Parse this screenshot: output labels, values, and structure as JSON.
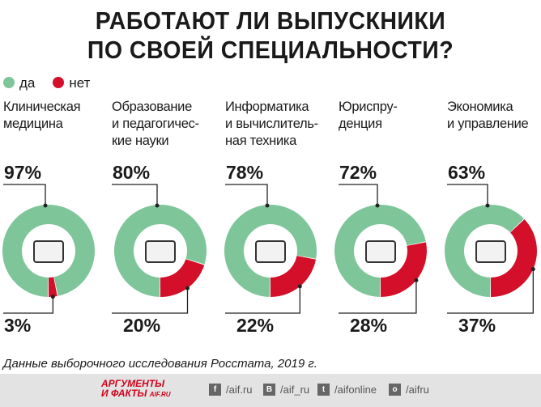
{
  "title_lines": [
    "РАБОТАЮТ ЛИ ВЫПУСКНИКИ",
    "ПО СВОЕЙ СПЕЦИАЛЬНОСТИ?"
  ],
  "chart_data": {
    "type": "donut",
    "legend": [
      {
        "label": "да",
        "color": "#7fc59a"
      },
      {
        "label": "нет",
        "color": "#d40f2a"
      }
    ],
    "categories": [
      {
        "label": "Клиническая медицина",
        "lines": [
          "Клиническая",
          "медицина"
        ],
        "icon": "first-aid-kit-icon",
        "yes": 97,
        "no": 3,
        "yes_label": "97%",
        "no_label": "3%"
      },
      {
        "label": "Образование и педагогические науки",
        "lines": [
          "Образование",
          "и педагогичес-",
          "кие науки"
        ],
        "icon": "books-icon",
        "yes": 80,
        "no": 20,
        "yes_label": "80%",
        "no_label": "20%"
      },
      {
        "label": "Информатика и вычислительная техника",
        "lines": [
          "Информатика",
          "и вычислитель-",
          "ная техника"
        ],
        "icon": "computer-code-icon",
        "yes": 78,
        "no": 22,
        "yes_label": "78%",
        "no_label": "22%"
      },
      {
        "label": "Юриспруденция",
        "lines": [
          "Юриспру-",
          "денция"
        ],
        "icon": "gavel-icon",
        "yes": 72,
        "no": 28,
        "yes_label": "72%",
        "no_label": "28%"
      },
      {
        "label": "Экономика и управление",
        "lines": [
          "Экономика",
          "и управление"
        ],
        "icon": "economics-chart-icon",
        "yes": 63,
        "no": 37,
        "yes_label": "63%",
        "no_label": "37%"
      }
    ]
  },
  "source": "Данные выборочного исследования Росстата, 2019 г.",
  "footer": {
    "logo_top": "АРГУМЕНТЫ",
    "logo_bottom": "И ФАКТЫ",
    "logo_site": "AIF.RU",
    "social": [
      {
        "icon": "facebook-icon",
        "glyph": "f",
        "label": "/aif.ru"
      },
      {
        "icon": "vk-icon",
        "glyph": "В",
        "label": "/aif_ru"
      },
      {
        "icon": "twitter-icon",
        "glyph": "t",
        "label": "/aifonline"
      },
      {
        "icon": "odnoklassniki-icon",
        "glyph": "о",
        "label": "/aifru"
      }
    ]
  }
}
